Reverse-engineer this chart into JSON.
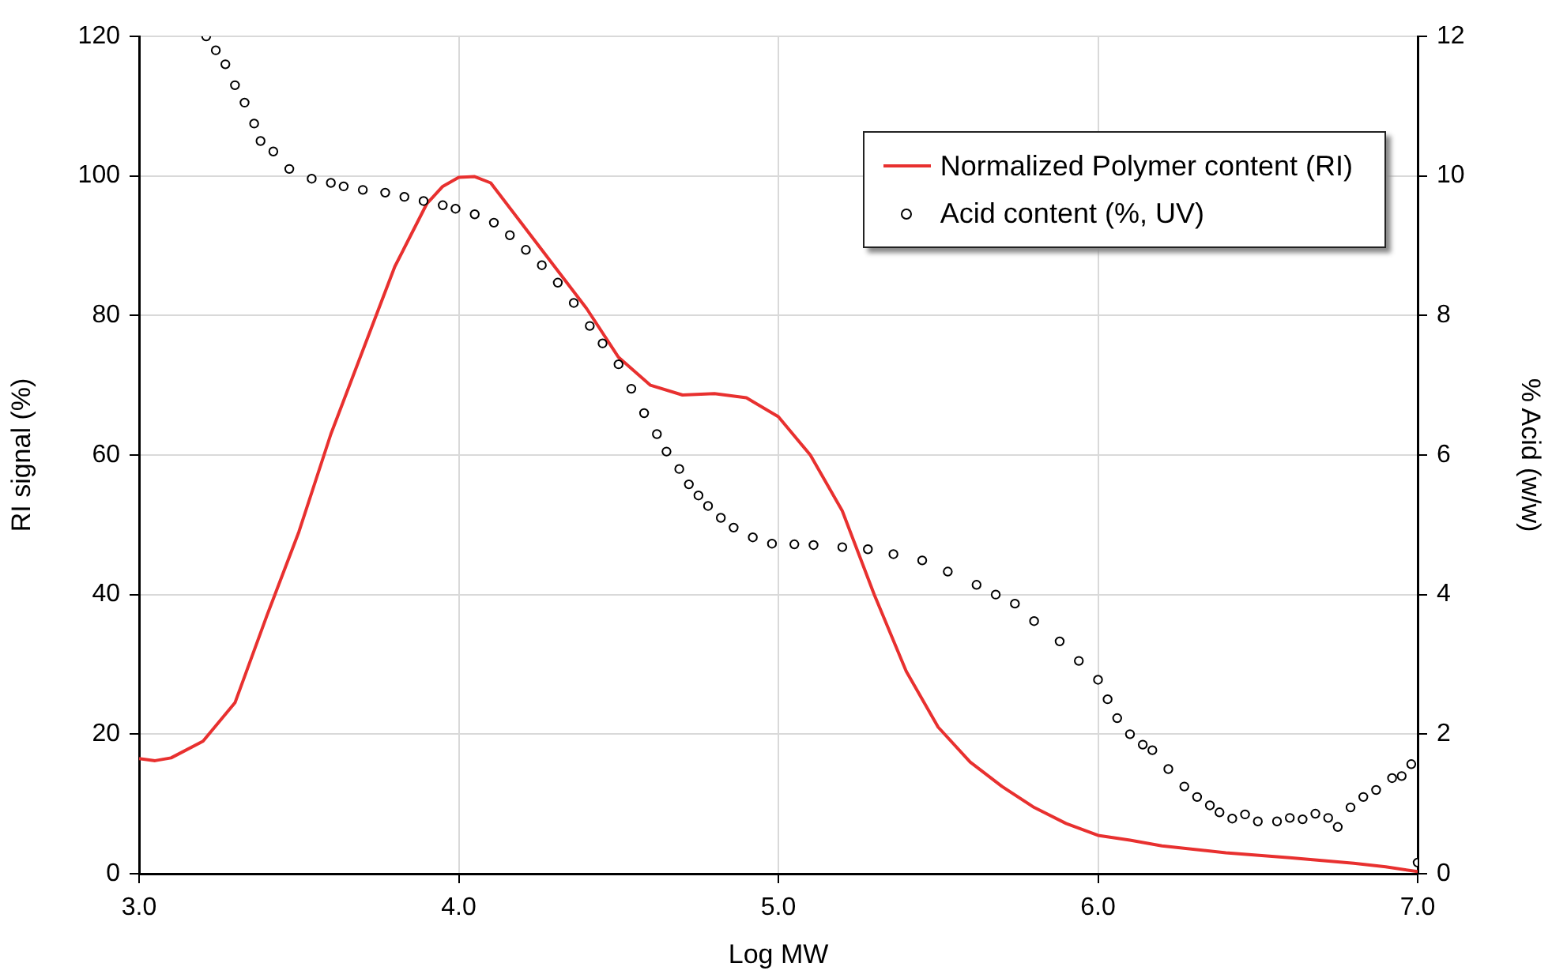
{
  "chart_data": {
    "type": "line",
    "xlabel": "Log MW",
    "ylabel": "RI signal (%)",
    "y2label": "% Acid (w/w)",
    "xlim": [
      3,
      7
    ],
    "xticks": [
      {
        "value": 3,
        "label": "3.0"
      },
      {
        "value": 4,
        "label": "4.0"
      },
      {
        "value": 5,
        "label": "5.0"
      },
      {
        "value": 6,
        "label": "6.0"
      },
      {
        "value": 7,
        "label": "7.0"
      }
    ],
    "ylim": [
      0,
      120
    ],
    "yticks": [
      0,
      20,
      40,
      60,
      80,
      100,
      120
    ],
    "y2lim": [
      0,
      12
    ],
    "y2ticks": [
      0,
      2,
      4,
      6,
      8,
      10,
      12
    ],
    "grid": true,
    "legend": "top right",
    "series": [
      {
        "name": "Normalized Polymer content (RI)",
        "type": "line",
        "color": "#e8302f",
        "marker": "none",
        "x": [
          3.0,
          3.05,
          3.1,
          3.2,
          3.3,
          3.4,
          3.5,
          3.6,
          3.7,
          3.8,
          3.9,
          3.95,
          4.0,
          4.05,
          4.1,
          4.2,
          4.3,
          4.4,
          4.5,
          4.6,
          4.7,
          4.8,
          4.9,
          5.0,
          5.1,
          5.2,
          5.25,
          5.3,
          5.4,
          5.5,
          5.6,
          5.7,
          5.8,
          5.9,
          6.0,
          6.1,
          6.2,
          6.4,
          6.6,
          6.8,
          6.9,
          7.0
        ],
        "values": [
          16.5,
          16.2,
          16.6,
          19,
          24.5,
          37,
          49,
          63,
          75,
          87,
          96,
          98.5,
          99.8,
          99.9,
          99,
          93,
          87,
          81,
          74,
          70,
          68.6,
          68.8,
          68.2,
          65.5,
          60,
          52,
          46,
          40,
          29,
          21,
          16,
          12.5,
          9.5,
          7.2,
          5.5,
          4.8,
          4,
          3,
          2.3,
          1.5,
          1,
          0.3
        ]
      },
      {
        "name": "Acid content (%, UV)",
        "type": "scatter",
        "axis": "y2",
        "color": "#000000",
        "marker": "circle",
        "x": [
          3.21,
          3.24,
          3.27,
          3.3,
          3.33,
          3.36,
          3.38,
          3.42,
          3.47,
          3.54,
          3.6,
          3.64,
          3.7,
          3.77,
          3.83,
          3.89,
          3.95,
          3.99,
          4.05,
          4.11,
          4.16,
          4.21,
          4.26,
          4.31,
          4.36,
          4.41,
          4.45,
          4.5,
          4.54,
          4.58,
          4.62,
          4.65,
          4.69,
          4.72,
          4.75,
          4.78,
          4.82,
          4.86,
          4.92,
          4.98,
          5.05,
          5.11,
          5.2,
          5.28,
          5.36,
          5.45,
          5.53,
          5.62,
          5.68,
          5.74,
          5.8,
          5.88,
          5.94,
          6.0,
          6.03,
          6.06,
          6.1,
          6.14,
          6.17,
          6.22,
          6.27,
          6.31,
          6.35,
          6.38,
          6.42,
          6.46,
          6.5,
          6.56,
          6.6,
          6.64,
          6.68,
          6.72,
          6.75,
          6.79,
          6.83,
          6.87,
          6.92,
          6.95,
          6.98,
          7.0
        ],
        "values": [
          12.0,
          11.8,
          11.6,
          11.3,
          11.05,
          10.75,
          10.5,
          10.35,
          10.1,
          9.96,
          9.9,
          9.85,
          9.8,
          9.76,
          9.7,
          9.64,
          9.58,
          9.53,
          9.45,
          9.33,
          9.15,
          8.94,
          8.72,
          8.47,
          8.18,
          7.85,
          7.6,
          7.3,
          6.95,
          6.6,
          6.3,
          6.05,
          5.8,
          5.58,
          5.42,
          5.27,
          5.1,
          4.96,
          4.82,
          4.73,
          4.72,
          4.71,
          4.68,
          4.65,
          4.58,
          4.49,
          4.33,
          4.14,
          4.0,
          3.87,
          3.62,
          3.33,
          3.05,
          2.78,
          2.5,
          2.23,
          2.0,
          1.85,
          1.77,
          1.5,
          1.25,
          1.1,
          0.98,
          0.88,
          0.79,
          0.85,
          0.75,
          0.75,
          0.8,
          0.78,
          0.86,
          0.8,
          0.67,
          0.95,
          1.1,
          1.2,
          1.37,
          1.4,
          1.57,
          0.16
        ]
      }
    ]
  }
}
